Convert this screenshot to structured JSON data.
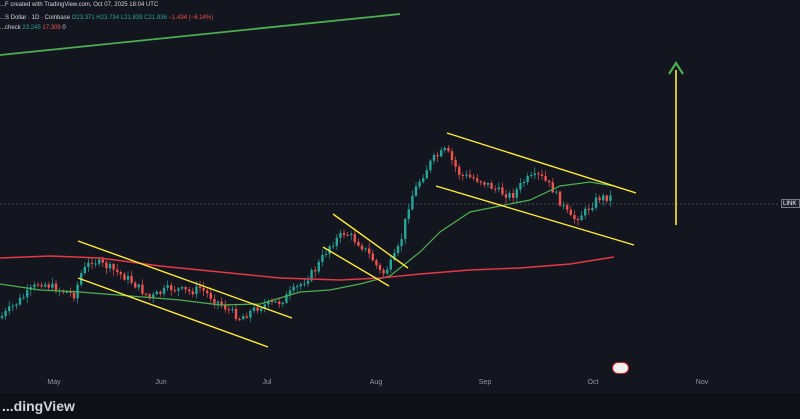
{
  "header": {
    "line1": "...F created with TradingView.com, Oct 07, 2025 18:04 UTC",
    "line2_prefix": "...S Dollar · 1D · Coinbase",
    "ohlc": {
      "o": "O23.371",
      "h": "H23.734",
      "l": "L21.839",
      "c": "C21.936",
      "chg": "−1.434 (−6.14%)"
    },
    "line3_label": "...check",
    "ind1": "23.245",
    "ind2": "17.309",
    "ind3": "0"
  },
  "price_tag": "LINK",
  "badge": "",
  "watermark": "...dingView",
  "colors": {
    "bg": "#14161f",
    "up": "#26a69a",
    "down": "#ef5350",
    "ma_short": "#4caf50",
    "ma_long": "#e53946",
    "channel": "#ffeb3b",
    "target_arrow": "#ffeb3b",
    "arrow_head": "#4caf50",
    "long_trend": "#4caf50"
  },
  "chart_data": {
    "type": "candlestick",
    "symbol": "LINK / U.S. Dollar",
    "interval": "1D",
    "exchange": "Coinbase",
    "x_ticks": [
      "May",
      "Jun",
      "Jul",
      "Aug",
      "Sep",
      "Oct",
      "Nov"
    ],
    "last_close": 21.936,
    "ohlc_last": {
      "open": 23.371,
      "high": 23.734,
      "low": 21.839,
      "close": 21.936
    },
    "indicators": {
      "ma_short": 23.245,
      "ma_long": 17.309
    },
    "drawings": [
      "falling channel May–Jun",
      "falling channel late Jul",
      "falling channel Aug–Oct",
      "upward target arrow",
      "long-term trendline"
    ]
  }
}
